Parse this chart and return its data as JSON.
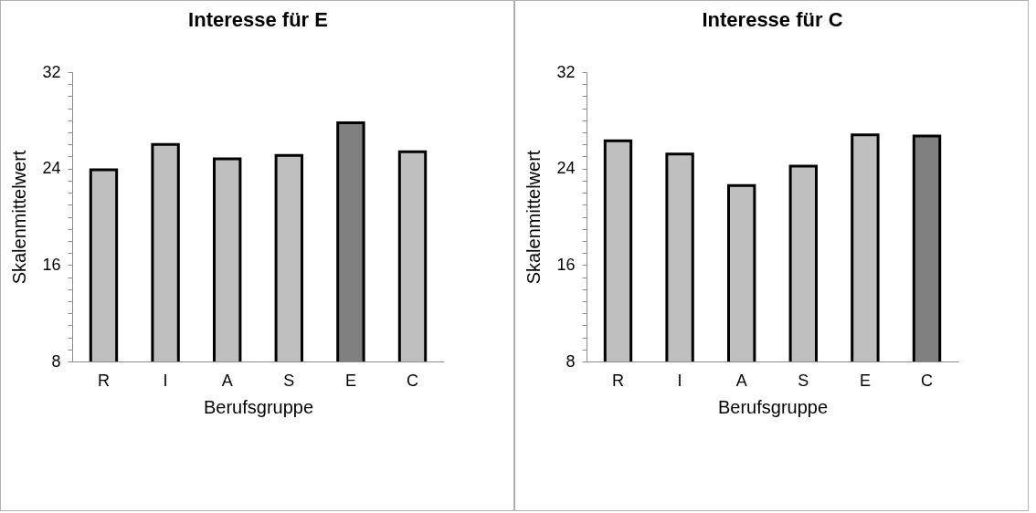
{
  "chart_data": [
    {
      "type": "bar",
      "title": "Interesse für E",
      "xlabel": "Berufsgruppe",
      "ylabel": "Skalenmittelwert",
      "categories": [
        "R",
        "I",
        "A",
        "S",
        "E",
        "C"
      ],
      "values": [
        23.9,
        26.0,
        24.8,
        25.1,
        27.8,
        25.4
      ],
      "colors": [
        "#bfbfbf",
        "#bfbfbf",
        "#bfbfbf",
        "#bfbfbf",
        "#808080",
        "#bfbfbf"
      ],
      "ylim": [
        8,
        32
      ],
      "yticks": [
        8,
        {
          "value": 9,
          "label": null
        },
        {
          "value": 10,
          "label": null
        },
        {
          "value": 11,
          "label": null
        },
        {
          "value": 12,
          "label": null
        },
        {
          "value": 13,
          "label": null
        },
        {
          "value": 14,
          "label": null
        },
        {
          "value": 15,
          "label": null
        },
        16,
        {
          "value": 17,
          "label": null
        },
        {
          "value": 18,
          "label": null
        },
        {
          "value": 19,
          "label": null
        },
        {
          "value": 20,
          "label": null
        },
        {
          "value": 21,
          "label": null
        },
        {
          "value": 22,
          "label": null
        },
        {
          "value": 23,
          "label": null
        },
        24,
        {
          "value": 25,
          "label": null
        },
        {
          "value": 26,
          "label": null
        },
        {
          "value": 27,
          "label": null
        },
        {
          "value": 28,
          "label": null
        },
        {
          "value": 29,
          "label": null
        },
        {
          "value": 30,
          "label": null
        },
        {
          "value": 31,
          "label": null
        },
        32
      ],
      "grid": false
    },
    {
      "type": "bar",
      "title": "Interesse für C",
      "xlabel": "Berufsgruppe",
      "ylabel": "Skalenmittelwert",
      "categories": [
        "R",
        "I",
        "A",
        "S",
        "E",
        "C"
      ],
      "values": [
        26.3,
        25.2,
        22.6,
        24.2,
        26.8,
        26.7
      ],
      "colors": [
        "#bfbfbf",
        "#bfbfbf",
        "#bfbfbf",
        "#bfbfbf",
        "#bfbfbf",
        "#808080"
      ],
      "ylim": [
        8,
        32
      ],
      "yticks": [
        8,
        {
          "value": 9,
          "label": null
        },
        {
          "value": 10,
          "label": null
        },
        {
          "value": 11,
          "label": null
        },
        {
          "value": 12,
          "label": null
        },
        {
          "value": 13,
          "label": null
        },
        {
          "value": 14,
          "label": null
        },
        {
          "value": 15,
          "label": null
        },
        16,
        {
          "value": 17,
          "label": null
        },
        {
          "value": 18,
          "label": null
        },
        {
          "value": 19,
          "label": null
        },
        {
          "value": 20,
          "label": null
        },
        {
          "value": 21,
          "label": null
        },
        {
          "value": 22,
          "label": null
        },
        {
          "value": 23,
          "label": null
        },
        24,
        {
          "value": 25,
          "label": null
        },
        {
          "value": 26,
          "label": null
        },
        {
          "value": 27,
          "label": null
        },
        {
          "value": 28,
          "label": null
        },
        {
          "value": 29,
          "label": null
        },
        {
          "value": 30,
          "label": null
        },
        {
          "value": 31,
          "label": null
        },
        32
      ],
      "grid": false
    }
  ]
}
